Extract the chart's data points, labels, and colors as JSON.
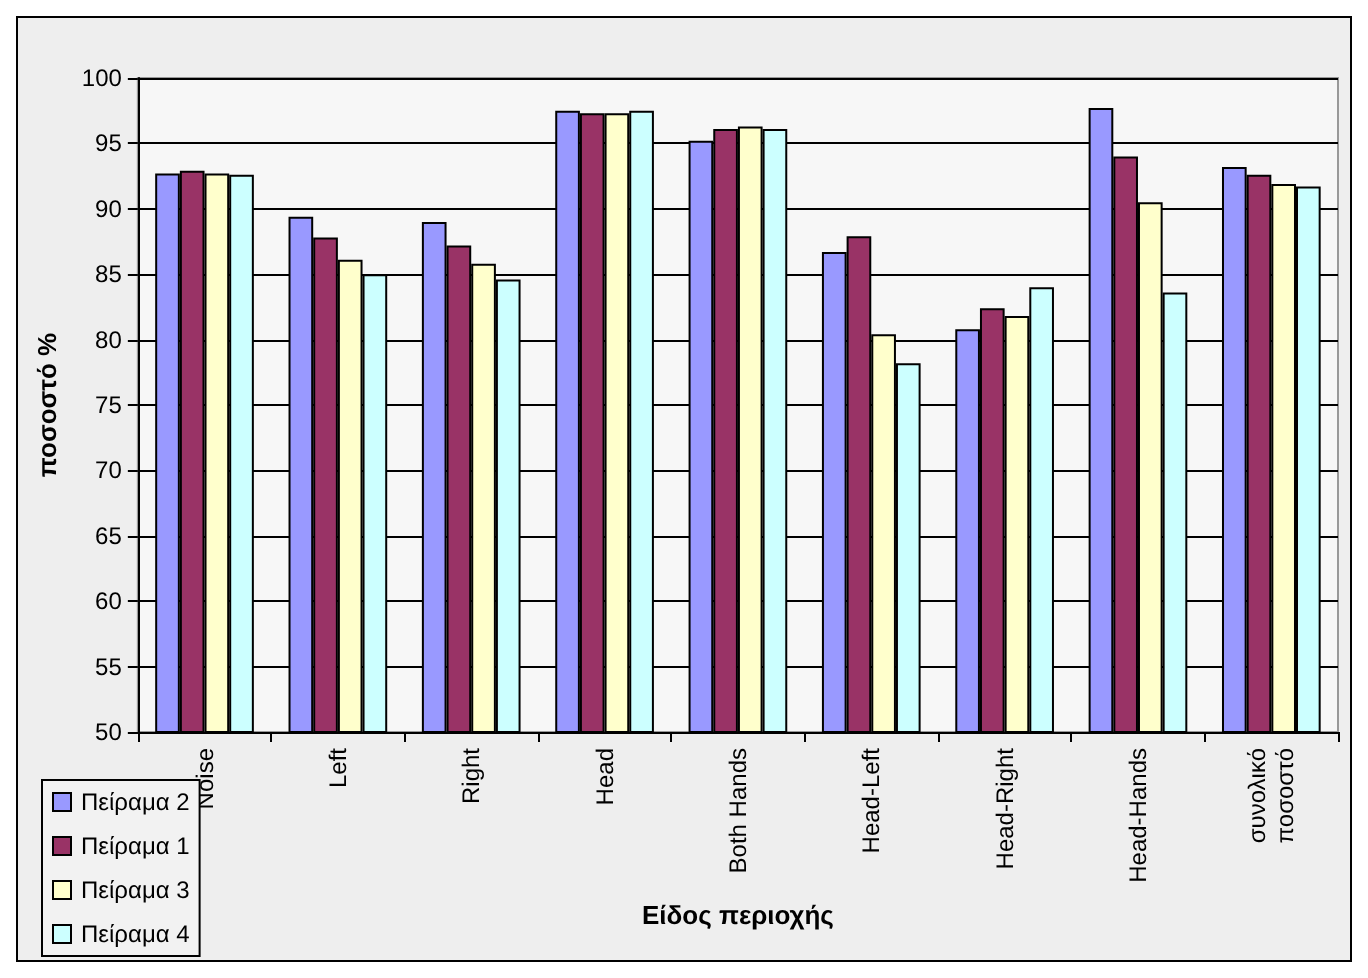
{
  "chart_data": {
    "type": "bar",
    "xlabel": "Είδος περιοχής",
    "ylabel": "ποσοστό %",
    "categories": [
      "Noise",
      "Left",
      "Right",
      "Head",
      "Both Hands",
      "Head-Left",
      "Head-Right",
      "Head-Hands",
      "συνολικό\nποσοστό"
    ],
    "series": [
      {
        "name": "Πείραμα 2",
        "color": "#9999ff",
        "values": [
          92.7,
          89.4,
          89.0,
          97.5,
          95.2,
          86.7,
          80.8,
          97.7,
          93.2
        ]
      },
      {
        "name": "Πείραμα 1",
        "color": "#993366",
        "values": [
          92.9,
          87.8,
          87.2,
          97.3,
          96.1,
          87.9,
          82.4,
          94.0,
          92.6
        ]
      },
      {
        "name": "Πείραμα 3",
        "color": "#ffffcc",
        "values": [
          92.7,
          86.1,
          85.8,
          97.3,
          96.3,
          80.4,
          81.8,
          90.5,
          91.9
        ]
      },
      {
        "name": "Πείραμα 4",
        "color": "#ccffff",
        "values": [
          92.6,
          85.0,
          84.6,
          97.5,
          96.1,
          78.2,
          84.0,
          83.6,
          91.7
        ]
      }
    ],
    "ylim": [
      50,
      100
    ],
    "yticks": [
      50,
      55,
      60,
      65,
      70,
      75,
      80,
      85,
      90,
      95,
      100
    ],
    "grid": "y",
    "legend": "bottom left"
  }
}
